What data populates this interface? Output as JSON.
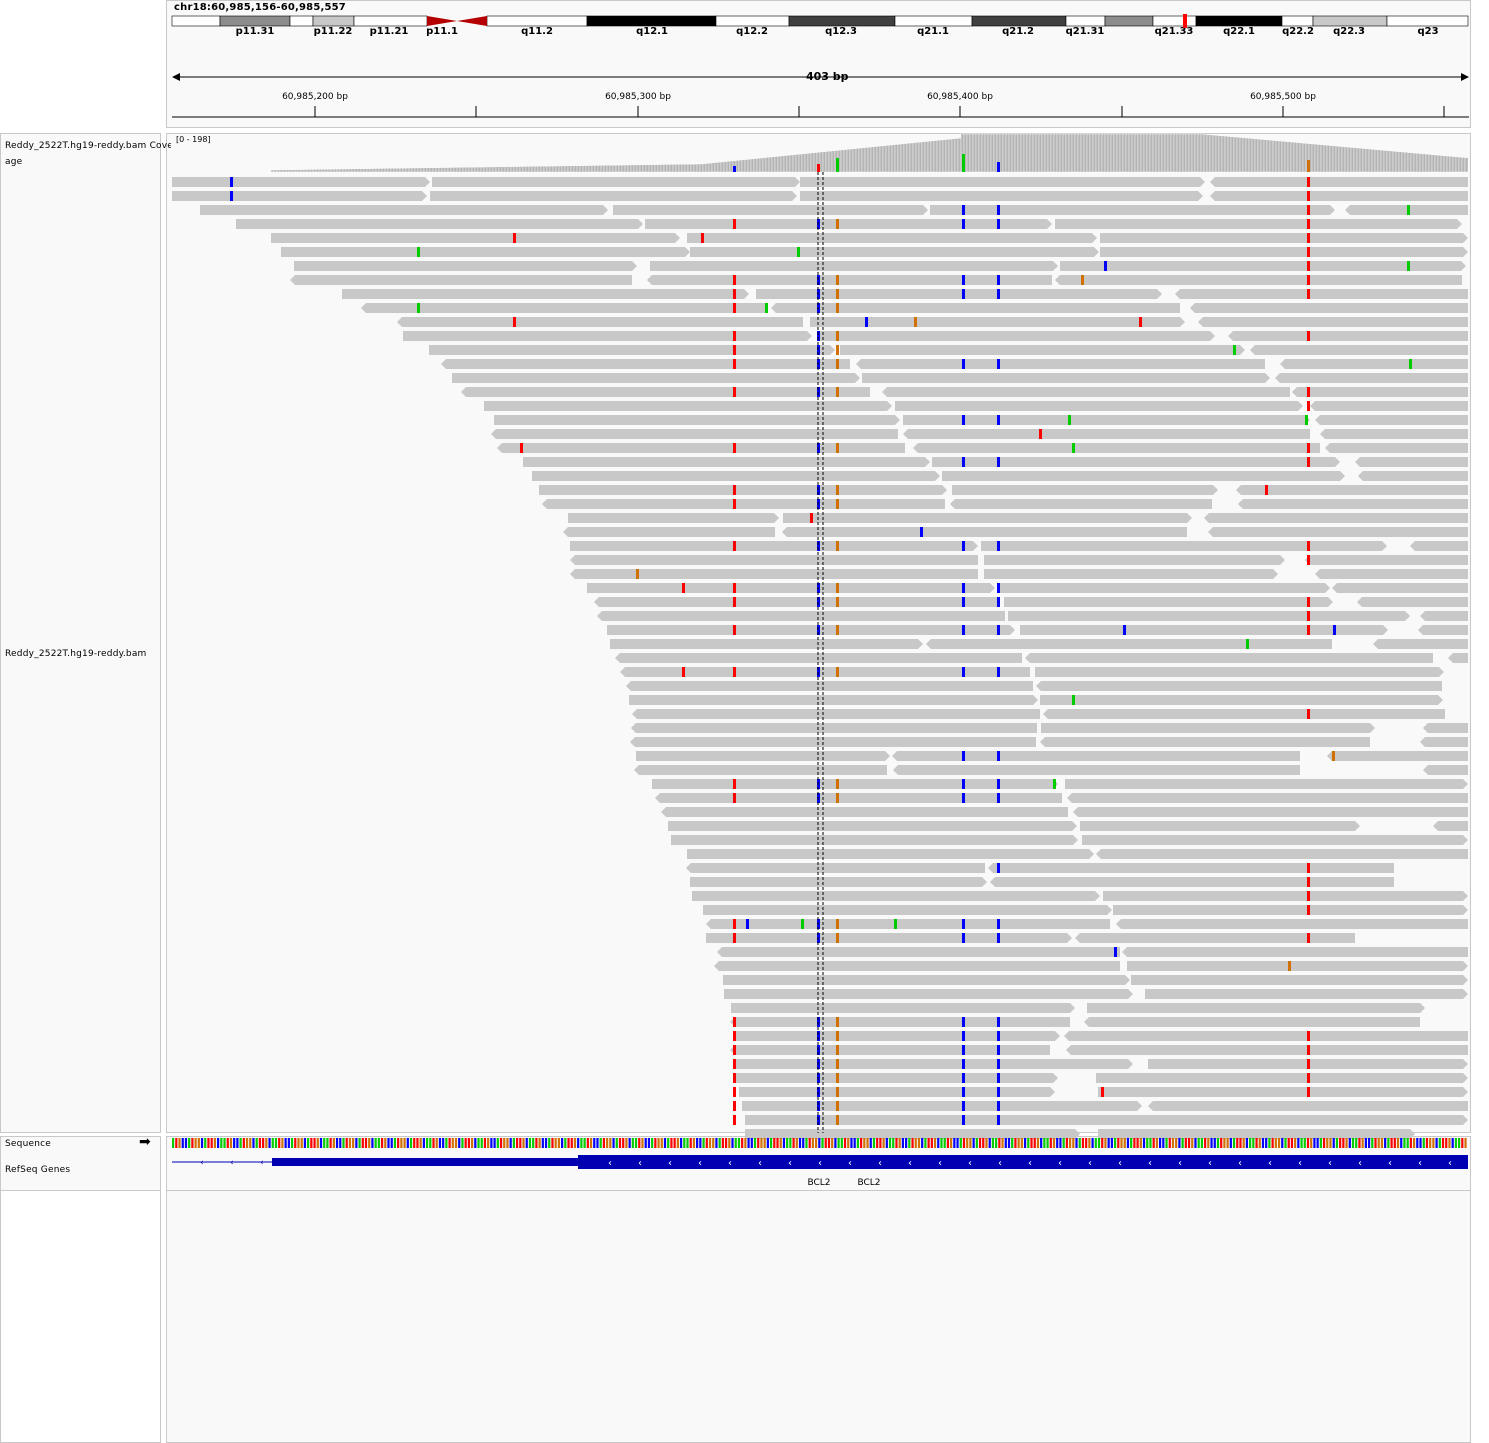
{
  "header": {
    "locus": "chr18:60,985,156-60,985,557",
    "span_label": "403 bp",
    "cytobands": [
      "p11.31",
      "p11.22",
      "p11.21",
      "p11.1",
      "q11.2",
      "q12.1",
      "q12.2",
      "q12.3",
      "q21.1",
      "q21.2",
      "q21.31",
      "q21.33",
      "q22.1",
      "q22.2",
      "q22.3",
      "q23"
    ],
    "ruler_ticks": [
      "60,985,200 bp",
      "60,985,300 bp",
      "60,985,400 bp",
      "60,985,500 bp"
    ]
  },
  "tracks": {
    "coverage_name": "Reddy_2522T.hg19-reddy.bam Coverage",
    "coverage_range": "[0 - 198]",
    "alignment_name": "Reddy_2522T.hg19-reddy.bam",
    "sequence_name": "Sequence",
    "genes_name": "RefSeq Genes",
    "gene_labels": [
      "BCL2",
      "BCL2"
    ]
  },
  "colors": {
    "read": "#c8c8c8",
    "mismatch_A": "#00cc00",
    "mismatch_C": "#0000ff",
    "mismatch_G": "#d17105",
    "mismatch_T": "#ff0000",
    "gene": "#0000b2"
  }
}
